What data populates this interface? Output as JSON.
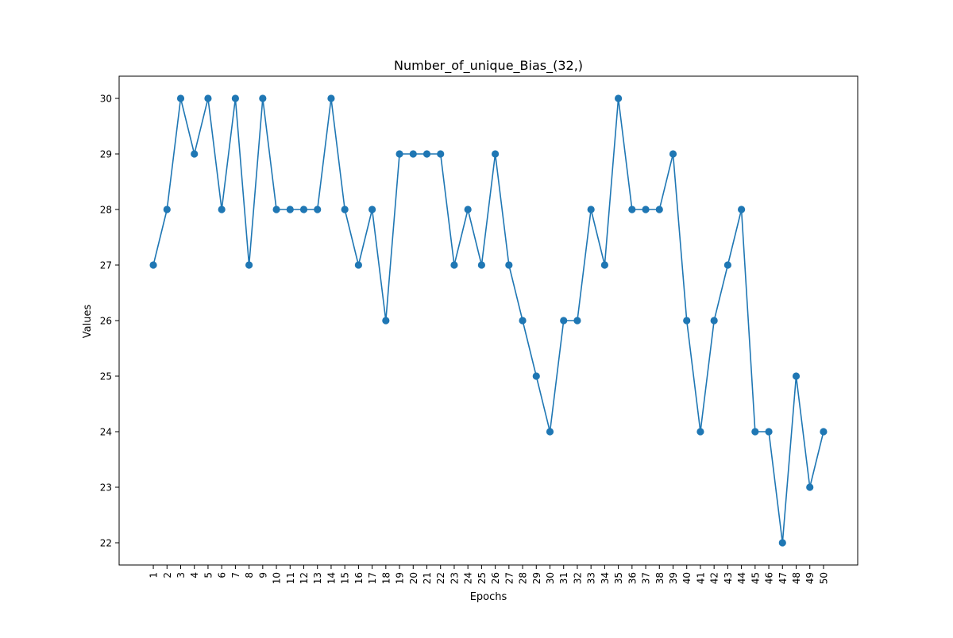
{
  "chart_data": {
    "type": "line",
    "title": "Number_of_unique_Bias_(32,)",
    "xlabel": "Epochs",
    "ylabel": "Values",
    "x": [
      1,
      2,
      3,
      4,
      5,
      6,
      7,
      8,
      9,
      10,
      11,
      12,
      13,
      14,
      15,
      16,
      17,
      18,
      19,
      20,
      21,
      22,
      23,
      24,
      25,
      26,
      27,
      28,
      29,
      30,
      31,
      32,
      33,
      34,
      35,
      36,
      37,
      38,
      39,
      40,
      41,
      42,
      43,
      44,
      45,
      46,
      47,
      48,
      49,
      50
    ],
    "x_tick_labels": [
      "1",
      "2",
      "3",
      "4",
      "5",
      "6",
      "7",
      "8",
      "9",
      "10",
      "11",
      "12",
      "13",
      "14",
      "15",
      "16",
      "17",
      "18",
      "19",
      "20",
      "21",
      "22",
      "23",
      "24",
      "25",
      "26",
      "27",
      "28",
      "29",
      "30",
      "31",
      "32",
      "33",
      "34",
      "35",
      "36",
      "37",
      "38",
      "39",
      "40",
      "41",
      "42",
      "43",
      "44",
      "45",
      "46",
      "47",
      "48",
      "49",
      "50"
    ],
    "series": [
      {
        "values": [
          27,
          28,
          30,
          29,
          30,
          28,
          30,
          27,
          30,
          28,
          28,
          28,
          28,
          30,
          28,
          27,
          28,
          26,
          29,
          29,
          29,
          29,
          27,
          28,
          27,
          29,
          27,
          26,
          25,
          24,
          26,
          26,
          28,
          27,
          30,
          28,
          28,
          28,
          29,
          26,
          24,
          26,
          27,
          28,
          24,
          24,
          22,
          25,
          23,
          24
        ],
        "color": "#1f77b4",
        "marker": "circle"
      }
    ],
    "y_tick_labels": [
      "22",
      "23",
      "24",
      "25",
      "26",
      "27",
      "28",
      "29",
      "30"
    ],
    "y_ticks": [
      22,
      23,
      24,
      25,
      26,
      27,
      28,
      29,
      30
    ],
    "xlim": [
      -1.5,
      52.5
    ],
    "ylim": [
      21.6,
      30.4
    ],
    "grid": false,
    "legend": "none"
  }
}
